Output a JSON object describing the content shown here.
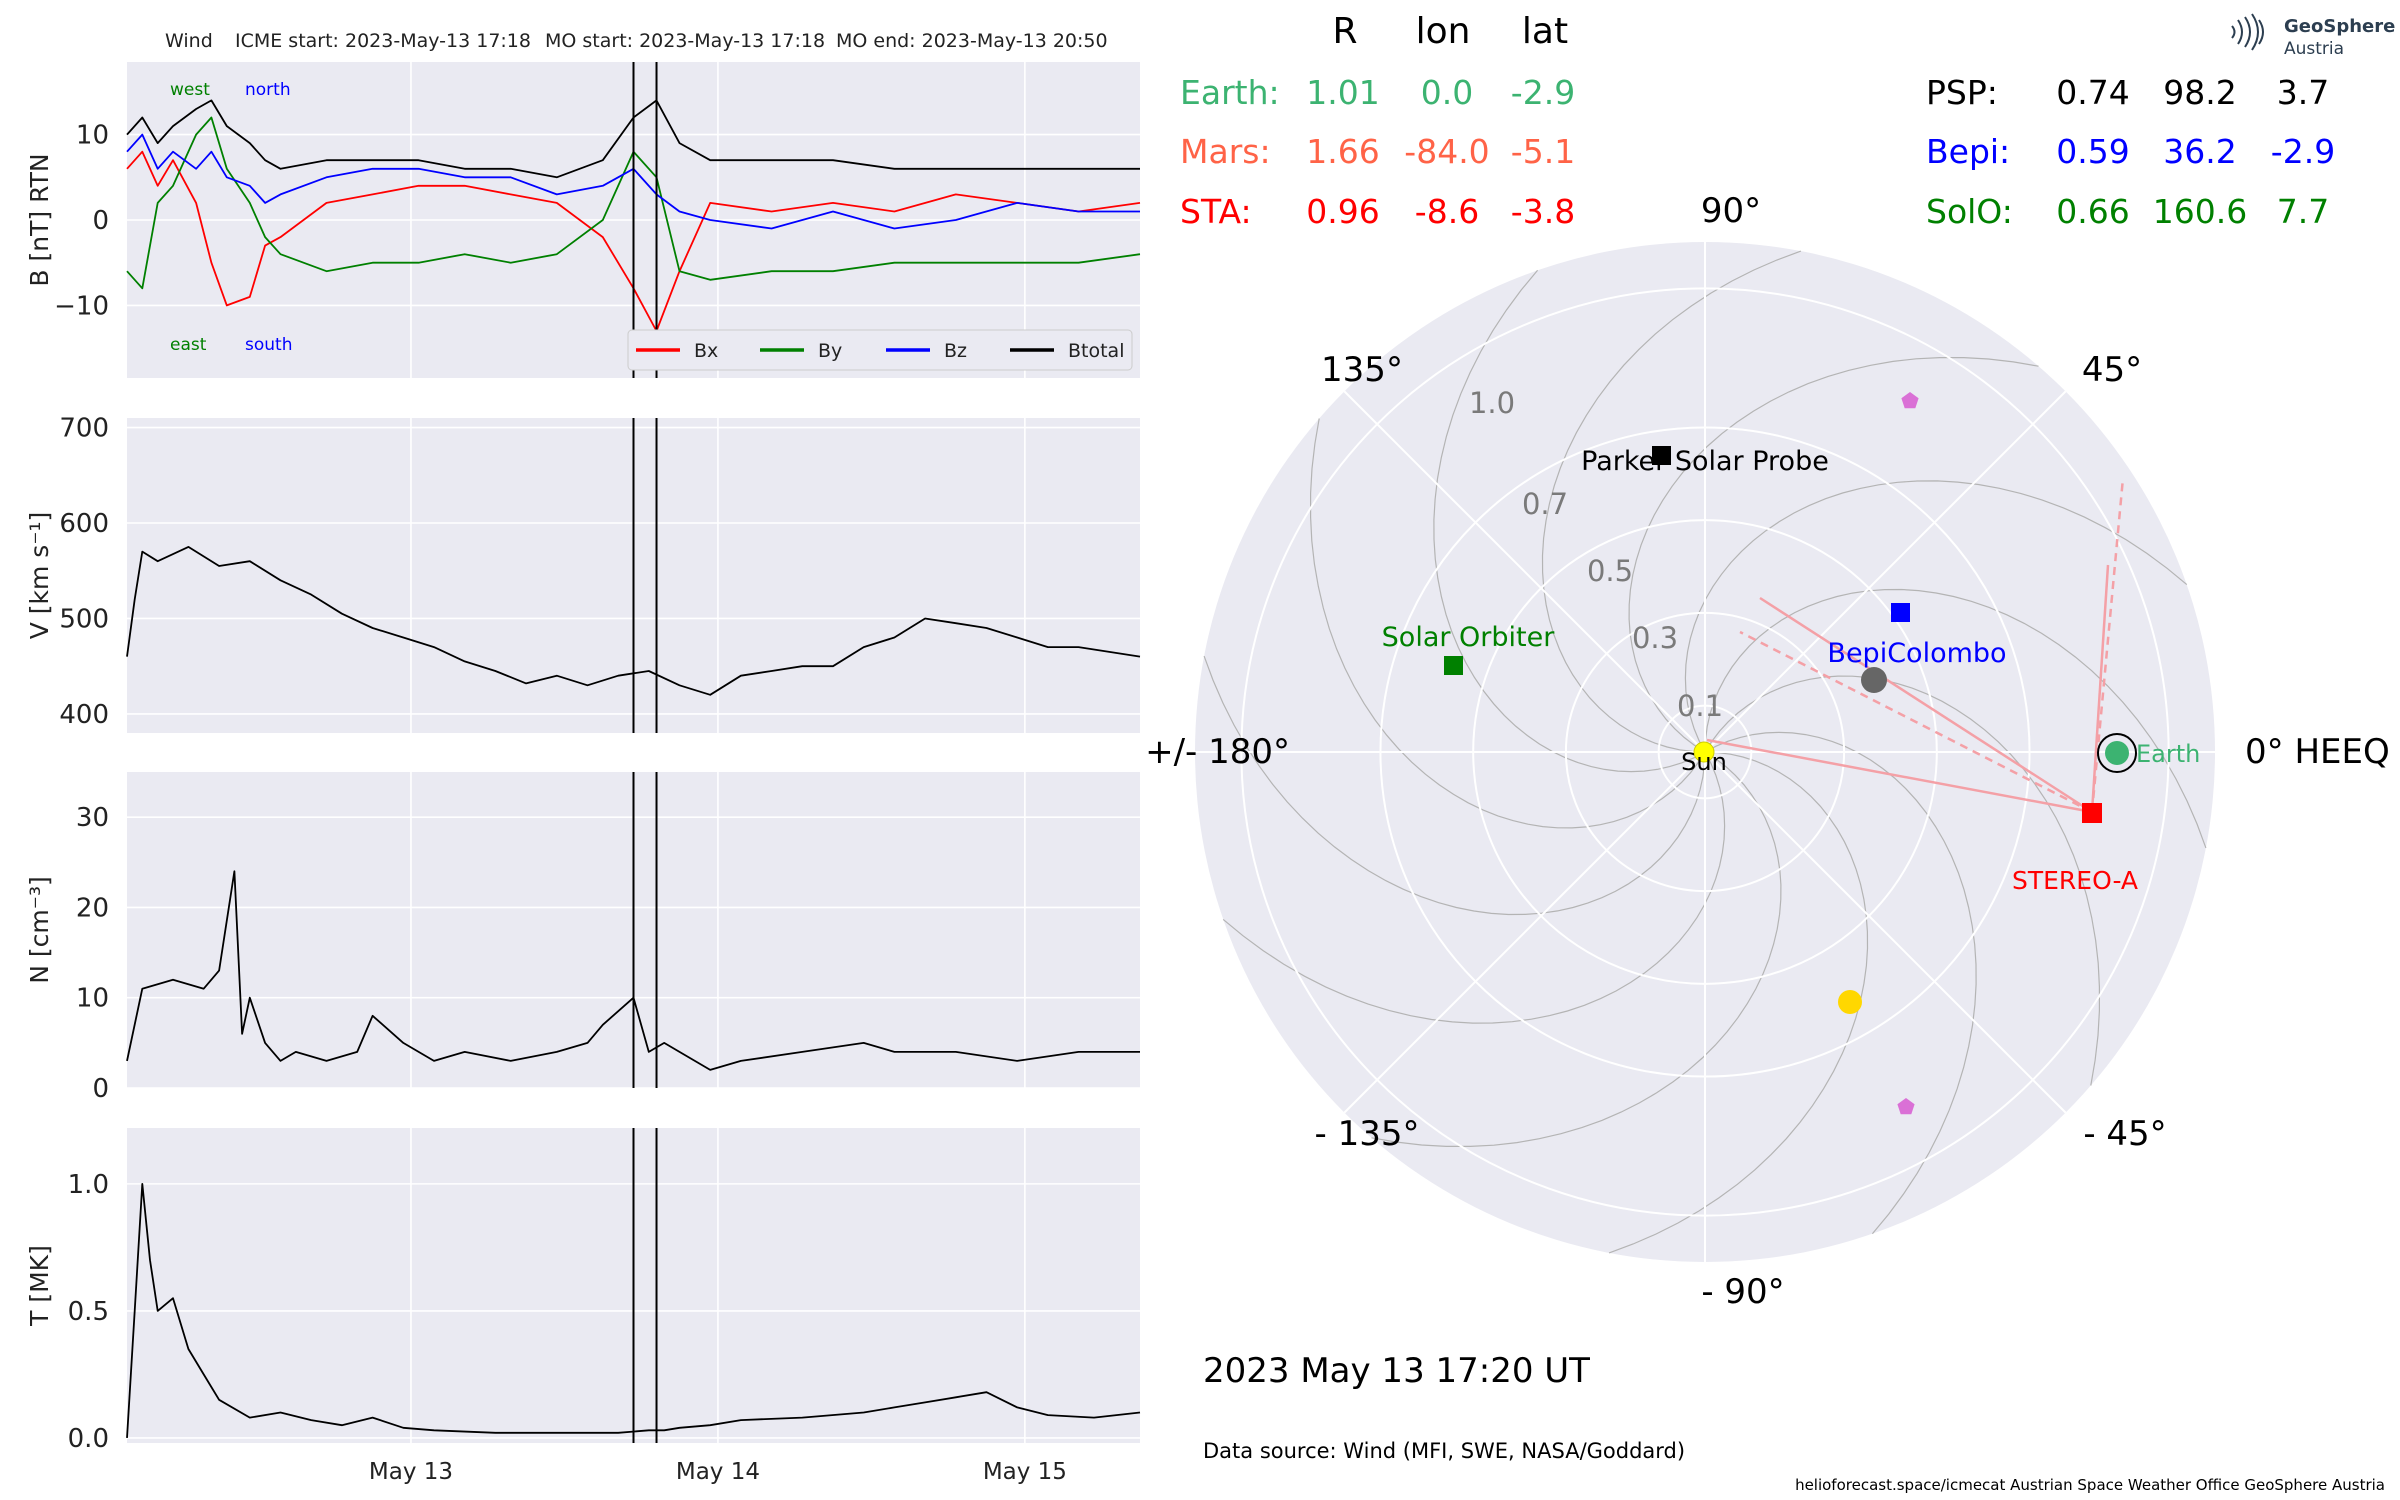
{
  "header": {
    "spacecraft": "Wind",
    "icme_start": "ICME start: 2023-May-13 17:18",
    "mo_start": "MO start: 2023-May-13 17:18",
    "mo_end": "MO end: 2023-May-13 20:50"
  },
  "logo": {
    "line1": "GeoSphere",
    "line2": "Austria"
  },
  "table": {
    "columns": [
      "R",
      "lon",
      "lat"
    ],
    "left": [
      {
        "name": "Earth:",
        "r": "1.01",
        "lon": "0.0",
        "lat": "-2.9",
        "color": "#3cb371"
      },
      {
        "name": "Mars:",
        "r": "1.66",
        "lon": "-84.0",
        "lat": "-5.1",
        "color": "#ff6347"
      },
      {
        "name": "STA:",
        "r": "0.96",
        "lon": "-8.6",
        "lat": "-3.8",
        "color": "#ff0000"
      }
    ],
    "right": [
      {
        "name": "PSP:",
        "r": "0.74",
        "lon": "98.2",
        "lat": "3.7",
        "color": "#000000"
      },
      {
        "name": "Bepi:",
        "r": "0.59",
        "lon": "36.2",
        "lat": "-2.9",
        "color": "#0000ff"
      },
      {
        "name": "SolO:",
        "r": "0.66",
        "lon": "160.6",
        "lat": "7.7",
        "color": "#008000"
      }
    ]
  },
  "polar": {
    "angle_labels": [
      "90°",
      "45°",
      "0° HEEQ",
      "- 45°",
      "- 90°",
      "- 135°",
      "+/- 180°",
      "135°"
    ],
    "radial_labels": [
      "1.0",
      "0.7",
      "0.5",
      "0.3",
      "0.1"
    ],
    "bodies": [
      {
        "label": "Sun",
        "color": "#ffff00"
      },
      {
        "label": "Earth",
        "color": "#3cb371"
      },
      {
        "label": "STEREO-A",
        "color": "#ff0000"
      },
      {
        "label": "BepiColombo",
        "color": "#0000ff"
      },
      {
        "label": "Parker Solar Probe",
        "color": "#000000"
      },
      {
        "label": "Solar Orbiter",
        "color": "#008000"
      }
    ]
  },
  "timestamp": "2023 May 13  17:20 UT",
  "data_source": "Data source: Wind (MFI, SWE, NASA/Goddard)",
  "footer": "helioforecast.space/icmecat   Austrian Space Weather Office   GeoSphere Austria",
  "chart_data": [
    {
      "type": "line",
      "ylabel": "B [nT] RTN",
      "ylim": [
        -18.5,
        18.5
      ],
      "yticks": [
        "10",
        "0",
        "−10"
      ],
      "annotations": [
        "west",
        "north",
        "east",
        "south"
      ],
      "x_ticks": [
        "May 13",
        "May 14",
        "May 15"
      ],
      "vertical_lines": [
        "2023-05-13 17:18",
        "2023-05-13 20:50"
      ],
      "series": [
        {
          "name": "Bx",
          "color": "#ff0000",
          "x": [
            0,
            0.1,
            0.2,
            0.3,
            0.45,
            0.55,
            0.65,
            0.8,
            0.9,
            1.0,
            1.3,
            1.6,
            1.9,
            2.2,
            2.5,
            2.8,
            3.1,
            3.3,
            3.45,
            3.6,
            3.8,
            4.2,
            4.6,
            5.0,
            5.4,
            5.8,
            6.2,
            6.6
          ],
          "y": [
            6,
            8,
            4,
            7,
            2,
            -5,
            -10,
            -9,
            -3,
            -2,
            2,
            3,
            4,
            4,
            3,
            2,
            -2,
            -8,
            -13,
            -6,
            2,
            1,
            2,
            1,
            3,
            2,
            1,
            2
          ]
        },
        {
          "name": "By",
          "color": "#008000",
          "x": [
            0,
            0.1,
            0.2,
            0.3,
            0.45,
            0.55,
            0.65,
            0.8,
            0.9,
            1.0,
            1.3,
            1.6,
            1.9,
            2.2,
            2.5,
            2.8,
            3.1,
            3.3,
            3.45,
            3.6,
            3.8,
            4.2,
            4.6,
            5.0,
            5.4,
            5.8,
            6.2,
            6.6
          ],
          "y": [
            -6,
            -8,
            2,
            4,
            10,
            12,
            6,
            2,
            -2,
            -4,
            -6,
            -5,
            -5,
            -4,
            -5,
            -4,
            0,
            8,
            5,
            -6,
            -7,
            -6,
            -6,
            -5,
            -5,
            -5,
            -5,
            -4
          ]
        },
        {
          "name": "Bz",
          "color": "#0000ff",
          "x": [
            0,
            0.1,
            0.2,
            0.3,
            0.45,
            0.55,
            0.65,
            0.8,
            0.9,
            1.0,
            1.3,
            1.6,
            1.9,
            2.2,
            2.5,
            2.8,
            3.1,
            3.3,
            3.45,
            3.6,
            3.8,
            4.2,
            4.6,
            5.0,
            5.4,
            5.8,
            6.2,
            6.6
          ],
          "y": [
            8,
            10,
            6,
            8,
            6,
            8,
            5,
            4,
            2,
            3,
            5,
            6,
            6,
            5,
            5,
            3,
            4,
            6,
            3,
            1,
            0,
            -1,
            1,
            -1,
            0,
            2,
            1,
            1
          ]
        },
        {
          "name": "Btotal",
          "color": "#000000",
          "x": [
            0,
            0.1,
            0.2,
            0.3,
            0.45,
            0.55,
            0.65,
            0.8,
            0.9,
            1.0,
            1.3,
            1.6,
            1.9,
            2.2,
            2.5,
            2.8,
            3.1,
            3.3,
            3.45,
            3.6,
            3.8,
            4.2,
            4.6,
            5.0,
            5.4,
            5.8,
            6.2,
            6.6
          ],
          "y": [
            10,
            12,
            9,
            11,
            13,
            14,
            11,
            9,
            7,
            6,
            7,
            7,
            7,
            6,
            6,
            5,
            7,
            12,
            14,
            9,
            7,
            7,
            7,
            6,
            6,
            6,
            6,
            6
          ]
        }
      ]
    },
    {
      "type": "line",
      "ylabel": "V [km s⁻¹]",
      "ylim": [
        380,
        710
      ],
      "yticks": [
        "700",
        "600",
        "500",
        "400"
      ],
      "x_ticks": [
        "May 13",
        "May 14",
        "May 15"
      ],
      "series": [
        {
          "name": "V",
          "color": "#000000",
          "x": [
            0,
            0.05,
            0.1,
            0.2,
            0.4,
            0.6,
            0.8,
            1.0,
            1.2,
            1.4,
            1.6,
            1.8,
            2.0,
            2.2,
            2.4,
            2.6,
            2.8,
            3.0,
            3.2,
            3.4,
            3.6,
            3.8,
            4.0,
            4.2,
            4.4,
            4.6,
            4.8,
            5.0,
            5.2,
            5.4,
            5.6,
            5.8,
            6.0,
            6.2,
            6.4,
            6.6
          ],
          "y": [
            460,
            520,
            570,
            560,
            575,
            555,
            560,
            540,
            525,
            505,
            490,
            480,
            470,
            455,
            445,
            432,
            440,
            430,
            440,
            445,
            430,
            420,
            440,
            445,
            450,
            450,
            470,
            480,
            500,
            495,
            490,
            480,
            470,
            470,
            465,
            460
          ]
        }
      ]
    },
    {
      "type": "line",
      "ylabel": "N [cm⁻³]",
      "ylim": [
        0,
        35
      ],
      "yticks": [
        "30",
        "20",
        "10",
        "0"
      ],
      "x_ticks": [
        "May 13",
        "May 14",
        "May 15"
      ],
      "series": [
        {
          "name": "N",
          "color": "#000000",
          "x": [
            0,
            0.1,
            0.3,
            0.5,
            0.6,
            0.7,
            0.75,
            0.8,
            0.9,
            1.0,
            1.1,
            1.3,
            1.5,
            1.6,
            1.8,
            2.0,
            2.2,
            2.5,
            2.8,
            3.0,
            3.1,
            3.3,
            3.4,
            3.5,
            3.6,
            3.8,
            4.0,
            4.4,
            4.8,
            5.0,
            5.4,
            5.8,
            6.2,
            6.6
          ],
          "y": [
            3,
            11,
            12,
            11,
            13,
            24,
            6,
            10,
            5,
            3,
            4,
            3,
            4,
            8,
            5,
            3,
            4,
            3,
            4,
            5,
            7,
            10,
            4,
            5,
            4,
            2,
            3,
            4,
            5,
            4,
            4,
            3,
            4,
            4
          ]
        }
      ]
    },
    {
      "type": "line",
      "ylabel": "T [MK]",
      "ylim": [
        -0.02,
        1.22
      ],
      "yticks": [
        "1.0",
        "0.5",
        "0.0"
      ],
      "x_ticks": [
        "May 13",
        "May 14",
        "May 15"
      ],
      "series": [
        {
          "name": "T",
          "color": "#000000",
          "x": [
            0,
            0.05,
            0.1,
            0.15,
            0.2,
            0.3,
            0.4,
            0.5,
            0.6,
            0.8,
            1.0,
            1.2,
            1.4,
            1.6,
            1.8,
            2.0,
            2.4,
            2.8,
            3.2,
            3.4,
            3.5,
            3.6,
            3.8,
            4.0,
            4.4,
            4.8,
            5.0,
            5.2,
            5.4,
            5.6,
            5.8,
            6.0,
            6.3,
            6.6
          ],
          "y": [
            0.0,
            0.5,
            1.0,
            0.7,
            0.5,
            0.55,
            0.35,
            0.25,
            0.15,
            0.08,
            0.1,
            0.07,
            0.05,
            0.08,
            0.04,
            0.03,
            0.02,
            0.02,
            0.02,
            0.03,
            0.03,
            0.04,
            0.05,
            0.07,
            0.08,
            0.1,
            0.12,
            0.14,
            0.16,
            0.18,
            0.12,
            0.09,
            0.08,
            0.1
          ]
        }
      ]
    }
  ]
}
